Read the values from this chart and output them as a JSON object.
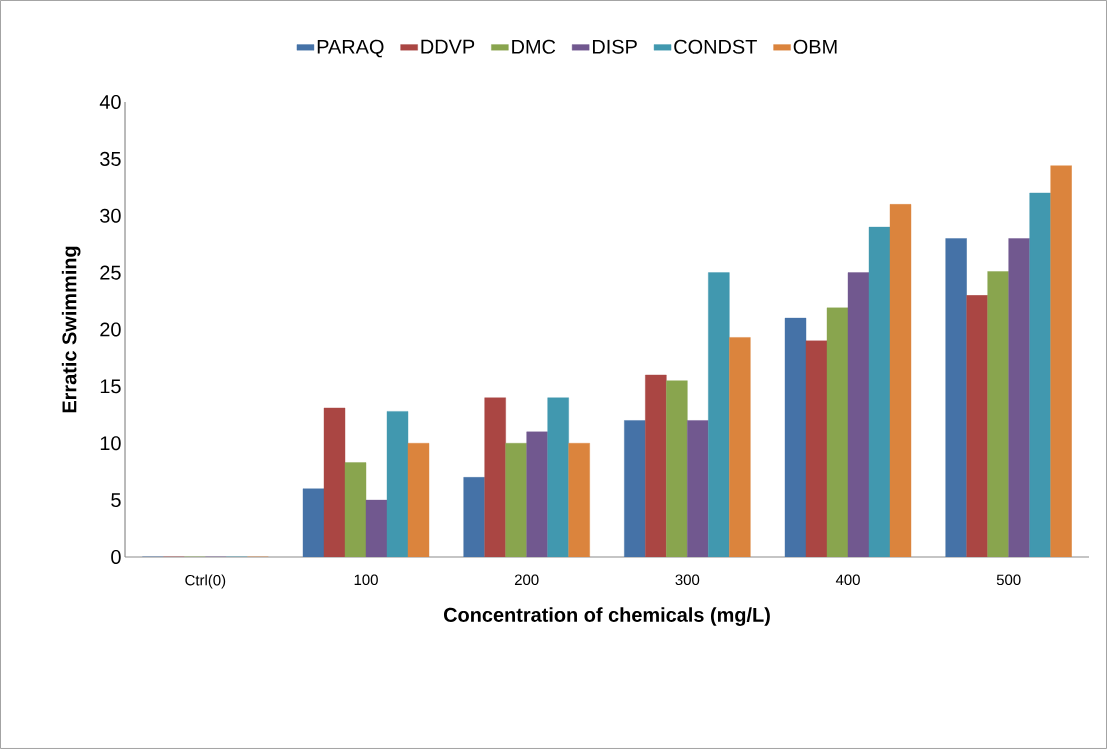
{
  "chart_data": {
    "type": "bar",
    "xlabel": "Concentration of chemicals (mg/L)",
    "ylabel": "Erratic Swimming",
    "categories": [
      "Ctrl(0)",
      "100",
      "200",
      "300",
      "400",
      "500"
    ],
    "ylim": [
      0,
      40
    ],
    "yticks": [
      0,
      5,
      10,
      15,
      20,
      25,
      30,
      35,
      40
    ],
    "legend": "top",
    "series": [
      {
        "name": "PARAQ",
        "color": "#4572a7",
        "values": [
          0,
          6,
          7,
          12,
          21,
          28
        ]
      },
      {
        "name": "DDVP",
        "color": "#aa4643",
        "values": [
          0,
          13.1,
          14,
          16,
          19,
          23
        ]
      },
      {
        "name": "DMC",
        "color": "#89a54e",
        "values": [
          0,
          8.3,
          10,
          15.5,
          21.9,
          25.1
        ]
      },
      {
        "name": "DISP",
        "color": "#71588f",
        "values": [
          0,
          5,
          11,
          12,
          25,
          28
        ]
      },
      {
        "name": "CONDST",
        "color": "#4198af",
        "values": [
          0,
          12.8,
          14,
          25,
          29,
          32
        ]
      },
      {
        "name": "OBM",
        "color": "#db843d",
        "values": [
          0,
          10,
          10,
          19.3,
          31,
          34.4
        ]
      }
    ]
  }
}
